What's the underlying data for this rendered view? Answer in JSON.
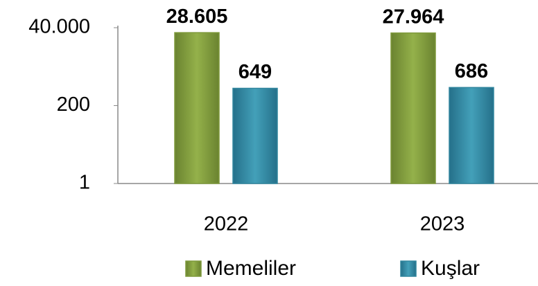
{
  "chart_data": {
    "type": "bar",
    "categories": [
      "2022",
      "2023"
    ],
    "series": [
      {
        "name": "Memeliler",
        "color": "#7f9a3c",
        "values": [
          28605,
          27964
        ],
        "value_labels": [
          "28.605",
          "27.964"
        ]
      },
      {
        "name": "Kuşlar",
        "color": "#31869e",
        "values": [
          649,
          686
        ],
        "value_labels": [
          "649",
          "686"
        ]
      }
    ],
    "log_scale": true,
    "ylim": [
      1,
      40000
    ],
    "yticks": [
      1,
      200,
      {
        "value": 40000,
        "label": "40.000"
      }
    ],
    "grid": false,
    "legend": "bottom"
  }
}
